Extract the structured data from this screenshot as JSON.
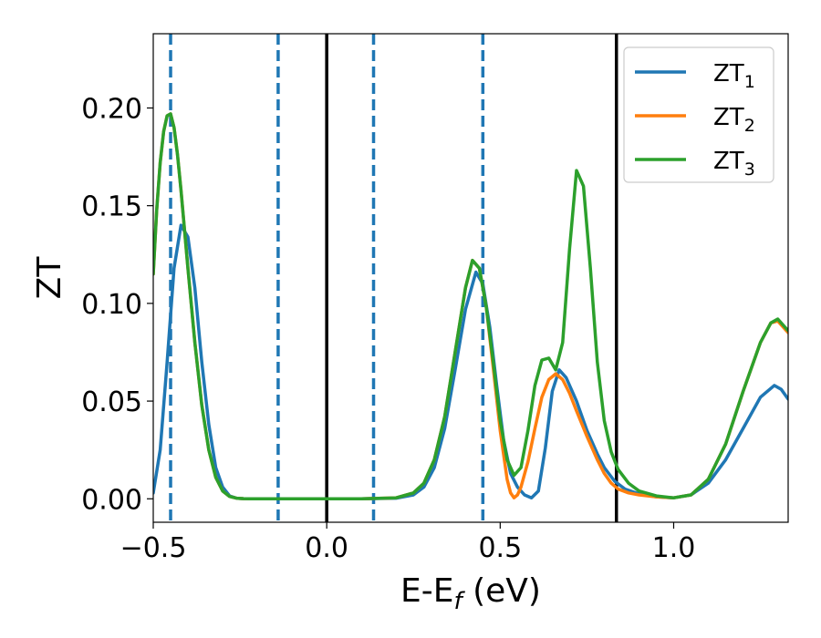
{
  "chart_data": {
    "type": "line",
    "xlabel": {
      "main": "E-E",
      "sub": "f",
      "suffix": " (eV)"
    },
    "ylabel": "ZT",
    "xlim": [
      -0.5,
      1.33
    ],
    "ylim": [
      -0.012,
      0.238
    ],
    "x_ticks": [
      {
        "value": -0.5,
        "label": "−0.5"
      },
      {
        "value": 0.0,
        "label": "0.0"
      },
      {
        "value": 0.5,
        "label": "0.5"
      },
      {
        "value": 1.0,
        "label": "1.0"
      }
    ],
    "y_ticks": [
      {
        "value": 0.0,
        "label": "0.00"
      },
      {
        "value": 0.05,
        "label": "0.05"
      },
      {
        "value": 0.1,
        "label": "0.10"
      },
      {
        "value": 0.15,
        "label": "0.15"
      },
      {
        "value": 0.2,
        "label": "0.20"
      }
    ],
    "vlines_solid": [
      0.0,
      0.835
    ],
    "vlines_dashed": [
      -0.45,
      -0.14,
      0.135,
      0.45
    ],
    "legend_position": "top-right",
    "grid": false,
    "series": [
      {
        "name": "ZT",
        "sub": "1",
        "color": "#1f77b4",
        "x": [
          -0.5,
          -0.48,
          -0.46,
          -0.44,
          -0.42,
          -0.4,
          -0.38,
          -0.36,
          -0.34,
          -0.32,
          -0.3,
          -0.28,
          -0.26,
          -0.24,
          -0.22,
          -0.2,
          -0.15,
          -0.1,
          0.0,
          0.1,
          0.2,
          0.25,
          0.28,
          0.31,
          0.34,
          0.37,
          0.4,
          0.43,
          0.45,
          0.47,
          0.49,
          0.51,
          0.53,
          0.55,
          0.57,
          0.59,
          0.61,
          0.63,
          0.65,
          0.67,
          0.69,
          0.72,
          0.75,
          0.78,
          0.8,
          0.83,
          0.86,
          0.9,
          0.95,
          1.0,
          1.05,
          1.1,
          1.15,
          1.2,
          1.25,
          1.29,
          1.31,
          1.33
        ],
        "y": [
          0.003,
          0.025,
          0.07,
          0.118,
          0.14,
          0.134,
          0.108,
          0.07,
          0.038,
          0.016,
          0.006,
          0.0015,
          0.0003,
          0.0001,
          0.0,
          0.0,
          0.0,
          0.0,
          0.0,
          0.0,
          0.0003,
          0.002,
          0.006,
          0.016,
          0.036,
          0.066,
          0.097,
          0.116,
          0.11,
          0.088,
          0.058,
          0.03,
          0.013,
          0.006,
          0.002,
          0.0005,
          0.004,
          0.026,
          0.055,
          0.066,
          0.062,
          0.05,
          0.035,
          0.023,
          0.016,
          0.009,
          0.005,
          0.0025,
          0.001,
          0.0005,
          0.002,
          0.008,
          0.02,
          0.036,
          0.052,
          0.058,
          0.056,
          0.051
        ]
      },
      {
        "name": "ZT",
        "sub": "2",
        "color": "#ff7f0e",
        "x": [
          -0.5,
          -0.49,
          -0.48,
          -0.47,
          -0.46,
          -0.45,
          -0.44,
          -0.43,
          -0.42,
          -0.4,
          -0.38,
          -0.36,
          -0.34,
          -0.32,
          -0.3,
          -0.28,
          -0.26,
          -0.24,
          -0.22,
          -0.2,
          -0.15,
          -0.1,
          0.0,
          0.1,
          0.2,
          0.25,
          0.28,
          0.31,
          0.34,
          0.37,
          0.4,
          0.42,
          0.44,
          0.46,
          0.48,
          0.5,
          0.52,
          0.53,
          0.54,
          0.55,
          0.56,
          0.58,
          0.6,
          0.62,
          0.64,
          0.66,
          0.68,
          0.7,
          0.72,
          0.75,
          0.78,
          0.8,
          0.82,
          0.84,
          0.87,
          0.9,
          0.95,
          1.0,
          1.05,
          1.1,
          1.15,
          1.2,
          1.25,
          1.28,
          1.3,
          1.33
        ],
        "y": [
          0.115,
          0.148,
          0.172,
          0.188,
          0.196,
          0.197,
          0.19,
          0.176,
          0.158,
          0.118,
          0.08,
          0.048,
          0.025,
          0.011,
          0.004,
          0.0012,
          0.0003,
          0.0001,
          0.0,
          0.0,
          0.0,
          0.0,
          0.0,
          0.0,
          0.0005,
          0.003,
          0.008,
          0.02,
          0.042,
          0.075,
          0.108,
          0.122,
          0.118,
          0.098,
          0.067,
          0.035,
          0.01,
          0.003,
          0.0005,
          0.002,
          0.006,
          0.019,
          0.036,
          0.052,
          0.061,
          0.064,
          0.061,
          0.054,
          0.045,
          0.032,
          0.02,
          0.013,
          0.008,
          0.005,
          0.003,
          0.002,
          0.001,
          0.0005,
          0.002,
          0.01,
          0.028,
          0.055,
          0.08,
          0.09,
          0.091,
          0.085
        ]
      },
      {
        "name": "ZT",
        "sub": "3",
        "color": "#2ca02c",
        "x": [
          -0.5,
          -0.49,
          -0.48,
          -0.47,
          -0.46,
          -0.45,
          -0.44,
          -0.43,
          -0.42,
          -0.4,
          -0.38,
          -0.36,
          -0.34,
          -0.32,
          -0.3,
          -0.28,
          -0.26,
          -0.24,
          -0.22,
          -0.2,
          -0.15,
          -0.1,
          0.0,
          0.1,
          0.2,
          0.25,
          0.28,
          0.31,
          0.34,
          0.37,
          0.4,
          0.42,
          0.44,
          0.46,
          0.48,
          0.5,
          0.52,
          0.54,
          0.56,
          0.58,
          0.6,
          0.62,
          0.64,
          0.66,
          0.68,
          0.7,
          0.72,
          0.74,
          0.76,
          0.78,
          0.8,
          0.82,
          0.84,
          0.87,
          0.9,
          0.95,
          1.0,
          1.05,
          1.1,
          1.15,
          1.2,
          1.25,
          1.28,
          1.3,
          1.33
        ],
        "y": [
          0.115,
          0.148,
          0.172,
          0.188,
          0.196,
          0.197,
          0.19,
          0.176,
          0.158,
          0.118,
          0.08,
          0.048,
          0.025,
          0.011,
          0.004,
          0.0012,
          0.0003,
          0.0001,
          0.0,
          0.0,
          0.0,
          0.0,
          0.0,
          0.0,
          0.0005,
          0.003,
          0.008,
          0.02,
          0.042,
          0.075,
          0.108,
          0.122,
          0.118,
          0.098,
          0.07,
          0.04,
          0.02,
          0.012,
          0.016,
          0.035,
          0.058,
          0.071,
          0.072,
          0.066,
          0.08,
          0.128,
          0.168,
          0.16,
          0.118,
          0.07,
          0.04,
          0.024,
          0.015,
          0.008,
          0.004,
          0.0015,
          0.0005,
          0.002,
          0.01,
          0.028,
          0.055,
          0.08,
          0.09,
          0.092,
          0.086
        ]
      }
    ]
  }
}
